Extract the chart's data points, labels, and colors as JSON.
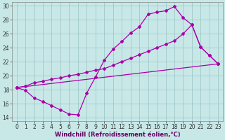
{
  "xlabel": "Windchill (Refroidissement éolien,°C)",
  "xlim_min": -0.5,
  "xlim_max": 23.5,
  "ylim_min": 13.5,
  "ylim_max": 30.5,
  "yticks": [
    14,
    16,
    18,
    20,
    22,
    24,
    26,
    28,
    30
  ],
  "xticks": [
    0,
    1,
    2,
    3,
    4,
    5,
    6,
    7,
    8,
    9,
    10,
    11,
    12,
    13,
    14,
    15,
    16,
    17,
    18,
    19,
    20,
    21,
    22,
    23
  ],
  "bg_color": "#c8e8e8",
  "grid_color": "#a0c8c8",
  "line_color": "#aa00aa",
  "line1_x": [
    0,
    1,
    2,
    3,
    4,
    5,
    6,
    7,
    8,
    9,
    10,
    11,
    12,
    13,
    14,
    15,
    16,
    17,
    18,
    19,
    20,
    21,
    22,
    23
  ],
  "line1_y": [
    18.3,
    17.9,
    16.8,
    16.3,
    15.7,
    15.1,
    14.5,
    14.4,
    17.5,
    19.8,
    22.2,
    23.8,
    24.9,
    26.1,
    27.0,
    28.8,
    29.1,
    29.3,
    29.9,
    28.3,
    27.3,
    24.1,
    22.9,
    21.7
  ],
  "line2_x": [
    0,
    1,
    2,
    3,
    4,
    5,
    6,
    7,
    8,
    9,
    10,
    11,
    12,
    13,
    14,
    15,
    16,
    17,
    18,
    19,
    20,
    21,
    22,
    23
  ],
  "line2_y": [
    18.3,
    18.5,
    19.0,
    19.2,
    19.5,
    19.7,
    20.0,
    20.2,
    20.5,
    20.8,
    21.0,
    21.5,
    22.0,
    22.5,
    23.0,
    23.5,
    24.0,
    24.5,
    25.0,
    26.0,
    27.3,
    24.1,
    22.9,
    21.7
  ],
  "line3_x": [
    0,
    23
  ],
  "line3_y": [
    18.3,
    21.7
  ],
  "marker": "D",
  "markersize": 2.0,
  "linewidth": 0.9,
  "figsize": [
    3.2,
    2.0
  ],
  "dpi": 100,
  "tick_fontsize": 5.5,
  "xlabel_fontsize": 6.0
}
